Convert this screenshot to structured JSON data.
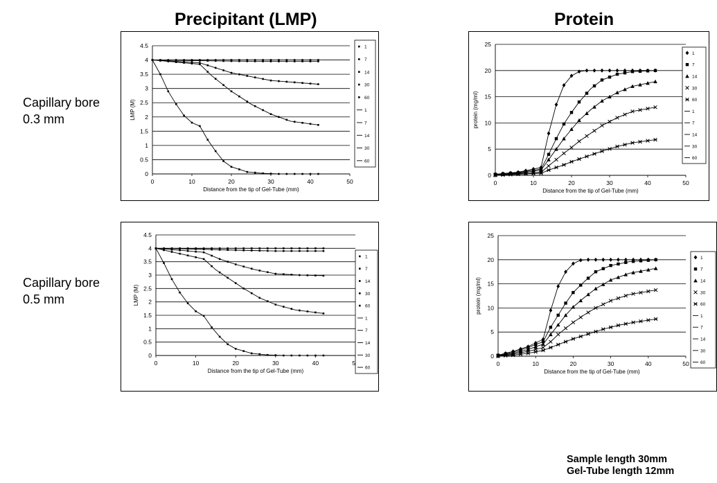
{
  "titles": {
    "left": "Precipitant (LMP)",
    "right": "Protein"
  },
  "rows": [
    {
      "line1": "Capillary bore",
      "line2": "0.3 mm"
    },
    {
      "line1": "Capillary bore",
      "line2": "0.5 mm"
    }
  ],
  "note": {
    "line1": "Sample length 30mm",
    "line2": "Gel-Tube length 12mm"
  },
  "chart_data": [
    {
      "type": "line",
      "panel": "lmp-0.3mm",
      "xlabel": "Distance from the tip of Gel-Tube (mm)",
      "ylabel": "LMP (M)",
      "xlim": [
        0,
        50
      ],
      "ylim": [
        0,
        4.5
      ],
      "xticks": [
        "0",
        "10",
        "20",
        "30",
        "40",
        "50"
      ],
      "yticks": [
        "0",
        "0.5",
        "1",
        "1.5",
        "2",
        "2.5",
        "3",
        "3.5",
        "4",
        "4.5"
      ],
      "grid": "horizontal",
      "legend_position": "right",
      "legend": [
        "1",
        "7",
        "14",
        "30",
        "60",
        "1",
        "7",
        "14",
        "30",
        "60"
      ],
      "series": [
        {
          "name": "1",
          "points": [
            [
              0,
              4.0
            ],
            [
              10,
              4.0
            ],
            [
              20,
              4.0
            ],
            [
              30,
              4.0
            ],
            [
              42,
              4.0
            ]
          ]
        },
        {
          "name": "7",
          "points": [
            [
              0,
              4.0
            ],
            [
              10,
              3.98
            ],
            [
              20,
              3.96
            ],
            [
              30,
              3.95
            ],
            [
              42,
              3.95
            ]
          ]
        },
        {
          "name": "14",
          "points": [
            [
              0,
              4.0
            ],
            [
              12,
              3.9
            ],
            [
              20,
              3.55
            ],
            [
              30,
              3.28
            ],
            [
              42,
              3.15
            ]
          ]
        },
        {
          "name": "30",
          "points": [
            [
              0,
              4.0
            ],
            [
              12,
              3.85
            ],
            [
              15,
              3.45
            ],
            [
              20,
              2.9
            ],
            [
              25,
              2.45
            ],
            [
              30,
              2.1
            ],
            [
              35,
              1.85
            ],
            [
              42,
              1.72
            ]
          ]
        },
        {
          "name": "60",
          "points": [
            [
              0,
              4.0
            ],
            [
              2,
              3.5
            ],
            [
              4,
              2.9
            ],
            [
              6,
              2.45
            ],
            [
              8,
              2.05
            ],
            [
              10,
              1.8
            ],
            [
              12,
              1.68
            ],
            [
              14,
              1.2
            ],
            [
              16,
              0.8
            ],
            [
              18,
              0.45
            ],
            [
              20,
              0.25
            ],
            [
              24,
              0.07
            ],
            [
              28,
              0.02
            ],
            [
              32,
              0.0
            ],
            [
              42,
              0.0
            ]
          ]
        }
      ]
    },
    {
      "type": "line",
      "panel": "protein-0.3mm",
      "xlabel": "Distance from the tip of Gel-Tube (mm)",
      "ylabel": "protein (mg/ml)",
      "xlim": [
        0,
        50
      ],
      "ylim": [
        0,
        25
      ],
      "xticks": [
        "0",
        "10",
        "20",
        "30",
        "40",
        "50"
      ],
      "yticks": [
        "0",
        "5",
        "10",
        "15",
        "20",
        "25"
      ],
      "grid": "horizontal",
      "legend_position": "right",
      "legend": [
        "1",
        "7",
        "14",
        "30",
        "60",
        "1",
        "7",
        "14",
        "30",
        "60"
      ],
      "series": [
        {
          "name": "1",
          "points": [
            [
              0,
              0.2
            ],
            [
              6,
              0.6
            ],
            [
              12,
              1.5
            ],
            [
              14,
              8.0
            ],
            [
              16,
              13.5
            ],
            [
              18,
              17.2
            ],
            [
              20,
              19.0
            ],
            [
              22,
              19.8
            ],
            [
              24,
              20.0
            ],
            [
              42,
              20.0
            ]
          ]
        },
        {
          "name": "7",
          "points": [
            [
              0,
              0.2
            ],
            [
              6,
              0.5
            ],
            [
              12,
              1.2
            ],
            [
              14,
              4.0
            ],
            [
              16,
              7.0
            ],
            [
              18,
              9.8
            ],
            [
              20,
              12.0
            ],
            [
              22,
              14.0
            ],
            [
              25,
              16.5
            ],
            [
              28,
              18.2
            ],
            [
              32,
              19.3
            ],
            [
              36,
              19.8
            ],
            [
              42,
              20.0
            ]
          ]
        },
        {
          "name": "14",
          "points": [
            [
              0,
              0.1
            ],
            [
              6,
              0.4
            ],
            [
              12,
              1.0
            ],
            [
              14,
              3.0
            ],
            [
              16,
              5.0
            ],
            [
              18,
              7.0
            ],
            [
              20,
              8.8
            ],
            [
              22,
              10.5
            ],
            [
              25,
              12.5
            ],
            [
              28,
              14.2
            ],
            [
              32,
              15.8
            ],
            [
              36,
              17.0
            ],
            [
              42,
              17.9
            ]
          ]
        },
        {
          "name": "30",
          "points": [
            [
              0,
              0.1
            ],
            [
              6,
              0.3
            ],
            [
              12,
              0.6
            ],
            [
              14,
              1.8
            ],
            [
              16,
              3.0
            ],
            [
              18,
              4.2
            ],
            [
              20,
              5.3
            ],
            [
              22,
              6.5
            ],
            [
              25,
              8.0
            ],
            [
              28,
              9.5
            ],
            [
              32,
              11.0
            ],
            [
              36,
              12.2
            ],
            [
              42,
              13.0
            ]
          ]
        },
        {
          "name": "60",
          "points": [
            [
              0,
              0.0
            ],
            [
              6,
              0.2
            ],
            [
              12,
              0.4
            ],
            [
              14,
              1.0
            ],
            [
              16,
              1.5
            ],
            [
              18,
              2.0
            ],
            [
              20,
              2.6
            ],
            [
              24,
              3.6
            ],
            [
              28,
              4.6
            ],
            [
              32,
              5.5
            ],
            [
              36,
              6.2
            ],
            [
              42,
              6.8
            ]
          ]
        }
      ]
    },
    {
      "type": "line",
      "panel": "lmp-0.5mm",
      "xlabel": "Distance from the tip of Gel-Tube (mm)",
      "ylabel": "LMP (M)",
      "xlim": [
        0,
        50
      ],
      "ylim": [
        0,
        4.5
      ],
      "xticks": [
        "0",
        "10",
        "20",
        "30",
        "40",
        "50"
      ],
      "yticks": [
        "0",
        "0.5",
        "1",
        "1.5",
        "2",
        "2.5",
        "3",
        "3.5",
        "4",
        "4.5"
      ],
      "grid": "horizontal",
      "legend_position": "right",
      "legend": [
        "1",
        "7",
        "14",
        "30",
        "60",
        "1",
        "7",
        "14",
        "30",
        "60"
      ],
      "series": [
        {
          "name": "1",
          "points": [
            [
              0,
              4.0
            ],
            [
              10,
              4.0
            ],
            [
              20,
              4.0
            ],
            [
              30,
              4.0
            ],
            [
              42,
              4.0
            ]
          ]
        },
        {
          "name": "7",
          "points": [
            [
              0,
              4.0
            ],
            [
              10,
              3.97
            ],
            [
              20,
              3.93
            ],
            [
              30,
              3.9
            ],
            [
              42,
              3.9
            ]
          ]
        },
        {
          "name": "14",
          "points": [
            [
              0,
              4.0
            ],
            [
              12,
              3.85
            ],
            [
              16,
              3.6
            ],
            [
              20,
              3.4
            ],
            [
              25,
              3.2
            ],
            [
              30,
              3.05
            ],
            [
              36,
              3.0
            ],
            [
              42,
              2.98
            ]
          ]
        },
        {
          "name": "30",
          "points": [
            [
              0,
              4.0
            ],
            [
              12,
              3.6
            ],
            [
              15,
              3.2
            ],
            [
              18,
              2.9
            ],
            [
              22,
              2.5
            ],
            [
              26,
              2.15
            ],
            [
              30,
              1.9
            ],
            [
              35,
              1.7
            ],
            [
              42,
              1.57
            ]
          ]
        },
        {
          "name": "60",
          "points": [
            [
              0,
              4.0
            ],
            [
              2,
              3.45
            ],
            [
              4,
              2.85
            ],
            [
              6,
              2.35
            ],
            [
              8,
              1.95
            ],
            [
              10,
              1.65
            ],
            [
              12,
              1.48
            ],
            [
              14,
              1.05
            ],
            [
              16,
              0.7
            ],
            [
              18,
              0.42
            ],
            [
              20,
              0.25
            ],
            [
              24,
              0.08
            ],
            [
              28,
              0.02
            ],
            [
              32,
              0.0
            ],
            [
              42,
              0.0
            ]
          ]
        }
      ]
    },
    {
      "type": "line",
      "panel": "protein-0.5mm",
      "xlabel": "Distance from the tip of Gel-Tube (mm)",
      "ylabel": "protein (mg/ml)",
      "xlim": [
        0,
        50
      ],
      "ylim": [
        0,
        25
      ],
      "xticks": [
        "0",
        "10",
        "20",
        "30",
        "40",
        "50"
      ],
      "yticks": [
        "0",
        "5",
        "10",
        "15",
        "20",
        "25"
      ],
      "grid": "horizontal",
      "legend_position": "right",
      "legend": [
        "1",
        "7",
        "14",
        "30",
        "60",
        "1",
        "7",
        "14",
        "30",
        "60"
      ],
      "series": [
        {
          "name": "1",
          "points": [
            [
              0,
              0.2
            ],
            [
              4,
              1.0
            ],
            [
              8,
              2.0
            ],
            [
              12,
              3.5
            ],
            [
              14,
              9.5
            ],
            [
              16,
              14.5
            ],
            [
              18,
              17.5
            ],
            [
              20,
              19.2
            ],
            [
              22,
              19.9
            ],
            [
              24,
              20.0
            ],
            [
              42,
              20.0
            ]
          ]
        },
        {
          "name": "7",
          "points": [
            [
              0,
              0.2
            ],
            [
              4,
              0.8
            ],
            [
              8,
              1.8
            ],
            [
              12,
              3.0
            ],
            [
              14,
              6.0
            ],
            [
              16,
              8.5
            ],
            [
              18,
              11.0
            ],
            [
              20,
              13.2
            ],
            [
              23,
              15.5
            ],
            [
              26,
              17.5
            ],
            [
              30,
              18.8
            ],
            [
              35,
              19.6
            ],
            [
              42,
              20.0
            ]
          ]
        },
        {
          "name": "14",
          "points": [
            [
              0,
              0.1
            ],
            [
              4,
              0.6
            ],
            [
              8,
              1.4
            ],
            [
              12,
              2.5
            ],
            [
              14,
              4.5
            ],
            [
              16,
              6.5
            ],
            [
              18,
              8.5
            ],
            [
              20,
              10.2
            ],
            [
              23,
              12.2
            ],
            [
              26,
              14.0
            ],
            [
              30,
              15.8
            ],
            [
              35,
              17.2
            ],
            [
              42,
              18.2
            ]
          ]
        },
        {
          "name": "30",
          "points": [
            [
              0,
              0.1
            ],
            [
              4,
              0.4
            ],
            [
              8,
              1.0
            ],
            [
              12,
              1.8
            ],
            [
              14,
              3.0
            ],
            [
              16,
              4.5
            ],
            [
              18,
              5.8
            ],
            [
              20,
              7.0
            ],
            [
              23,
              8.6
            ],
            [
              26,
              10.0
            ],
            [
              30,
              11.5
            ],
            [
              35,
              12.8
            ],
            [
              42,
              13.7
            ]
          ]
        },
        {
          "name": "60",
          "points": [
            [
              0,
              0.0
            ],
            [
              4,
              0.2
            ],
            [
              8,
              0.6
            ],
            [
              12,
              1.2
            ],
            [
              14,
              1.8
            ],
            [
              16,
              2.4
            ],
            [
              18,
              3.0
            ],
            [
              20,
              3.6
            ],
            [
              24,
              4.6
            ],
            [
              28,
              5.6
            ],
            [
              32,
              6.4
            ],
            [
              36,
              7.0
            ],
            [
              42,
              7.7
            ]
          ]
        }
      ]
    }
  ]
}
